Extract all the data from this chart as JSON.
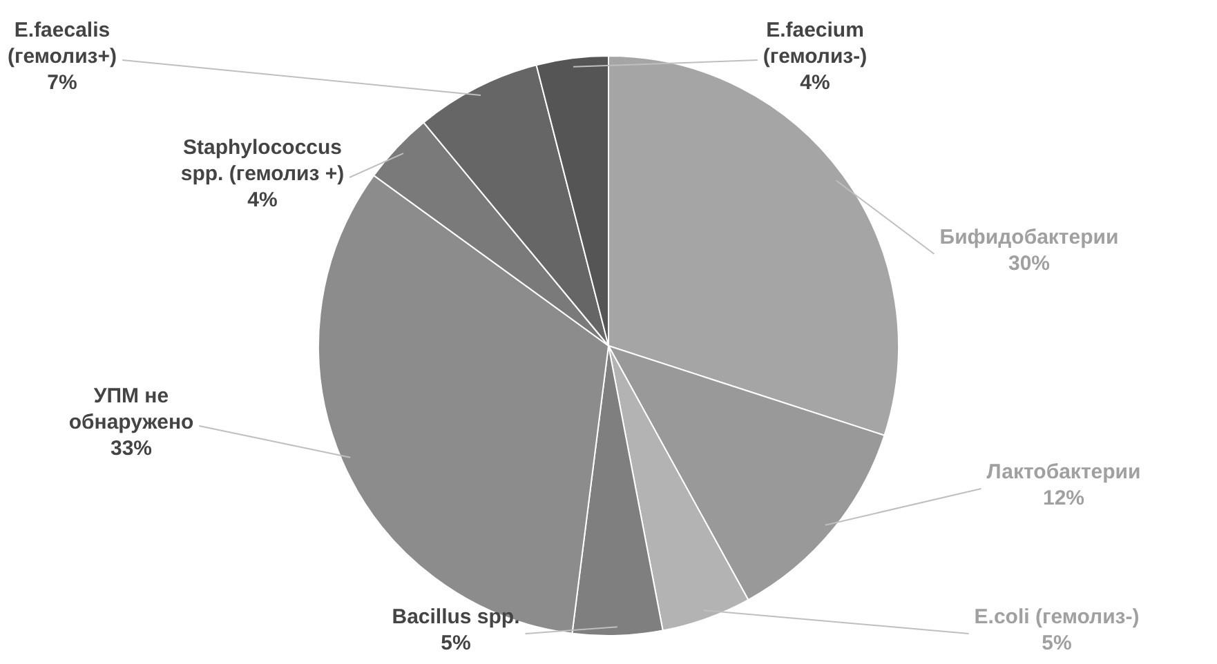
{
  "chart_data": {
    "type": "pie",
    "categories": [
      "Бифидобактерии",
      "Лактобактерии",
      "E.coli (гемолиз-)",
      "Bacillus spp.",
      "УПМ не обнаружено",
      "Staphylococcus spp. (гемолиз +)",
      "E.faecalis (гемолиз+)",
      "E.faecium (гемолиз-)"
    ],
    "values": [
      30,
      12,
      5,
      5,
      33,
      4,
      7,
      4
    ],
    "colors": [
      "#a5a5a5",
      "#999999",
      "#b3b3b3",
      "#7f7f7f",
      "#8c8c8c",
      "#7a7a7a",
      "#666666",
      "#555555"
    ],
    "value_labels": [
      "30%",
      "12%",
      "5%",
      "5%",
      "33%",
      "4%",
      "7%",
      "4%"
    ],
    "legend": false
  }
}
